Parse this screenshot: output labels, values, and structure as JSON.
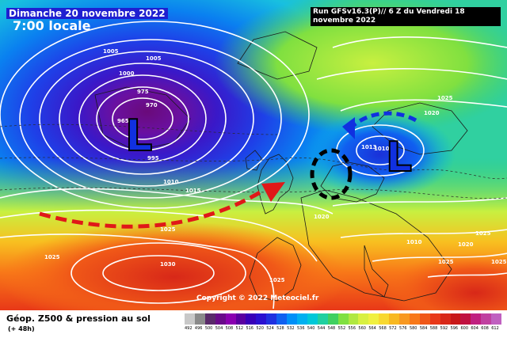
{
  "header": {
    "date": "Dimanche 20 novembre 2022",
    "local_time": "7:00 locale",
    "run_info": "Run GFSv16.3(P)// 6 Z du Vendredi 18 novembre 2022"
  },
  "footer": {
    "title": "Géop. Z500 & pression au sol",
    "subtitle": "(+ 48h)",
    "copyright": "Copyright © 2022 Meteociel.fr"
  },
  "pressure_systems": [
    {
      "symbol": "L",
      "area": "north-atlantic"
    },
    {
      "symbol": "L",
      "area": "scandinavia"
    }
  ],
  "isobar_labels": [
    {
      "text": "1020"
    },
    {
      "text": "1005"
    },
    {
      "text": "1005"
    },
    {
      "text": "1000"
    },
    {
      "text": "975"
    },
    {
      "text": "970"
    },
    {
      "text": "965"
    },
    {
      "text": "995"
    },
    {
      "text": "1010"
    },
    {
      "text": "1015"
    },
    {
      "text": "1025"
    },
    {
      "text": "1025"
    },
    {
      "text": "1030"
    },
    {
      "text": "1025"
    },
    {
      "text": "1020"
    },
    {
      "text": "1013"
    },
    {
      "text": "1010"
    },
    {
      "text": "1025"
    },
    {
      "text": "1020"
    },
    {
      "text": "1010"
    },
    {
      "text": "1020"
    },
    {
      "text": "1025"
    },
    {
      "text": "1025"
    },
    {
      "text": "1025"
    }
  ],
  "scale": {
    "values": [
      "492",
      "496",
      "500",
      "504",
      "508",
      "512",
      "516",
      "520",
      "524",
      "528",
      "532",
      "536",
      "540",
      "544",
      "548",
      "552",
      "556",
      "560",
      "564",
      "568",
      "572",
      "576",
      "580",
      "584",
      "588",
      "592",
      "596",
      "600",
      "604",
      "608",
      "612"
    ],
    "colors": [
      "#c8c8c8",
      "#8a8a8a",
      "#5a2a6a",
      "#6a0a8a",
      "#8a00b0",
      "#5a00a0",
      "#3800b8",
      "#2a10d0",
      "#1f30e0",
      "#1060f0",
      "#0090f8",
      "#00b0f0",
      "#00c8d8",
      "#20d0a0",
      "#40d060",
      "#80e040",
      "#b0e840",
      "#d8f040",
      "#f0f040",
      "#f8d830",
      "#f8b820",
      "#f89820",
      "#f87818",
      "#f05818",
      "#e83818",
      "#d82818",
      "#c81818",
      "#c01040",
      "#c02080",
      "#c040a0",
      "#c060c0"
    ],
    "accent": "#1f1fd0"
  }
}
